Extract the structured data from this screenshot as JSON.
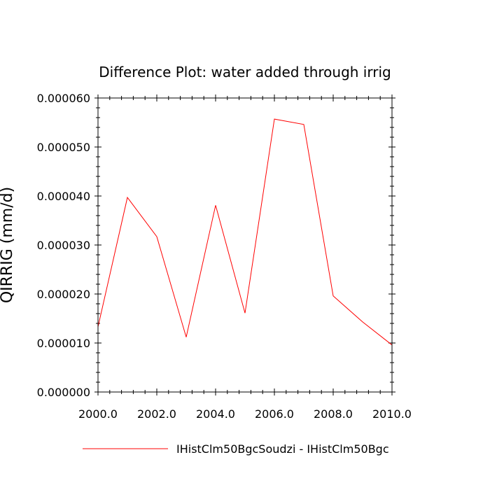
{
  "chart_data": {
    "type": "line",
    "title": "Difference Plot: water added through irrig",
    "xlabel": "",
    "ylabel": "QIRRIG  (mm/d)",
    "xlim": [
      2000,
      2010
    ],
    "ylim": [
      0,
      6e-05
    ],
    "x_ticks": [
      2000,
      2002,
      2004,
      2006,
      2008,
      2010
    ],
    "x_tick_labels": [
      "2000.0",
      "2002.0",
      "2004.0",
      "2006.0",
      "2008.0",
      "2010.0"
    ],
    "y_ticks": [
      0,
      1e-05,
      2e-05,
      3e-05,
      4e-05,
      5e-05,
      6e-05
    ],
    "y_tick_labels": [
      "0.000000",
      "0.000010",
      "0.000020",
      "0.000030",
      "0.000040",
      "0.000050",
      "0.000060"
    ],
    "grid": false,
    "legend_position": "bottom-center",
    "series": [
      {
        "name": "IHistClm50BgcSoudzi - IHistClm50Bgc",
        "color": "#ff0000",
        "x": [
          2000,
          2001,
          2002,
          2003,
          2004,
          2005,
          2006,
          2007,
          2008,
          2009,
          2010
        ],
        "values": [
          1.33e-05,
          3.97e-05,
          3.17e-05,
          1.12e-05,
          3.81e-05,
          1.61e-05,
          5.57e-05,
          5.46e-05,
          1.96e-05,
          1.43e-05,
          9.6e-06
        ]
      }
    ]
  }
}
